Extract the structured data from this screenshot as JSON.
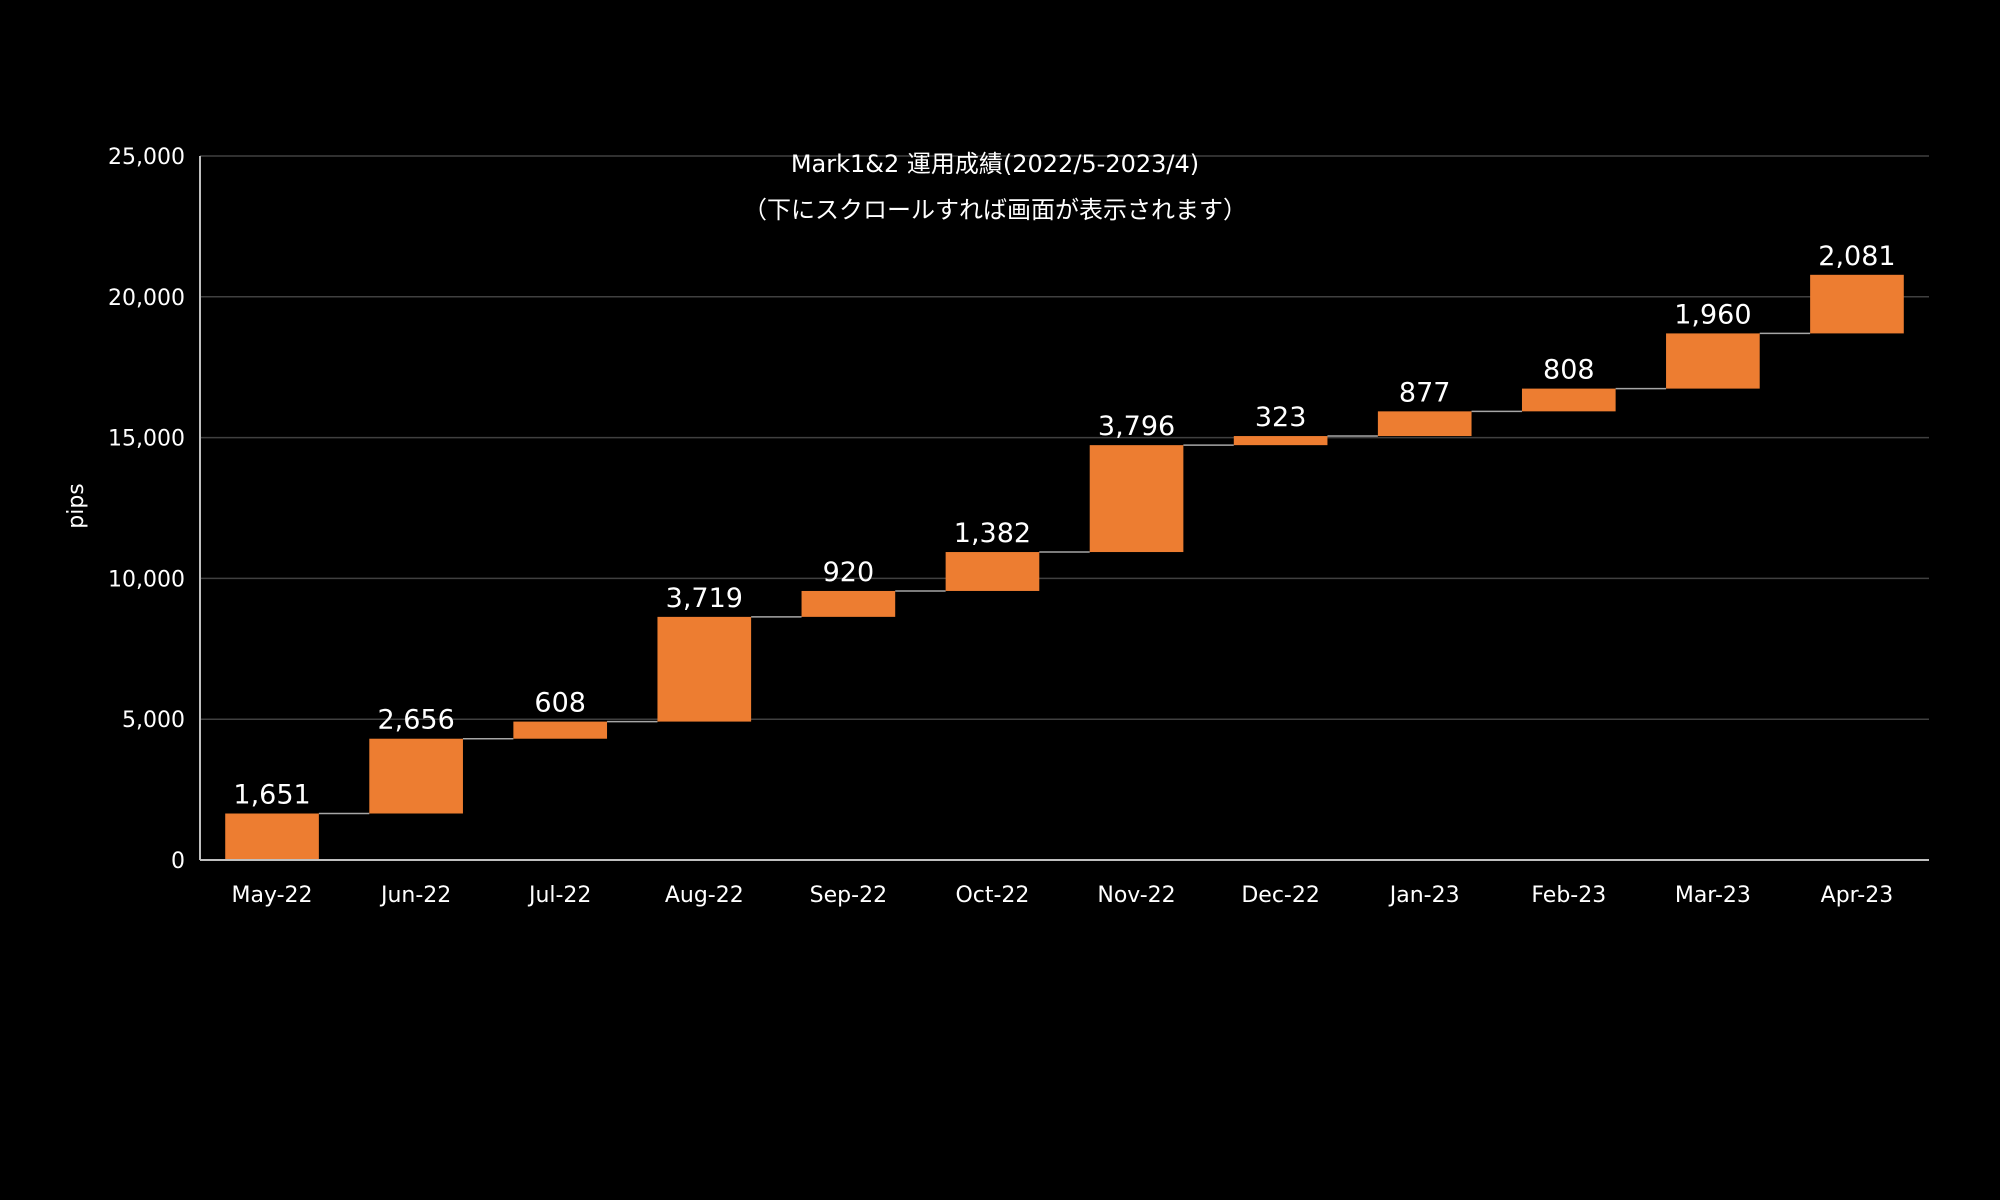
{
  "chart_data": {
    "type": "waterfall",
    "title": "Mark1&2 運用成績(2022/5-2023/4)",
    "subtitle": "（下にスクロールすれば画面が表示されます）",
    "xlabel": "",
    "ylabel": "pips",
    "ylim": [
      0,
      25000
    ],
    "yticks": [
      "0",
      "5,000",
      "10,000",
      "15,000",
      "20,000",
      "25,000"
    ],
    "ytick_values": [
      0,
      5000,
      10000,
      15000,
      20000,
      25000
    ],
    "grid": true,
    "categories": [
      "May-22",
      "Jun-22",
      "Jul-22",
      "Aug-22",
      "Sep-22",
      "Oct-22",
      "Nov-22",
      "Dec-22",
      "Jan-23",
      "Feb-23",
      "Mar-23",
      "Apr-23"
    ],
    "values": [
      1651,
      2656,
      608,
      3719,
      920,
      1382,
      3796,
      323,
      877,
      808,
      1960,
      2081
    ],
    "value_labels": [
      "1,651",
      "2,656",
      "608",
      "3,719",
      "920",
      "1,382",
      "3,796",
      "323",
      "877",
      "808",
      "1,960",
      "2,081"
    ],
    "colors": {
      "bar": "#ED7D31",
      "connector": "#A6A6A6",
      "grid": "#404040",
      "axis": "#BFBFBF",
      "text": "#FFFFFF",
      "background": "#000000"
    }
  }
}
